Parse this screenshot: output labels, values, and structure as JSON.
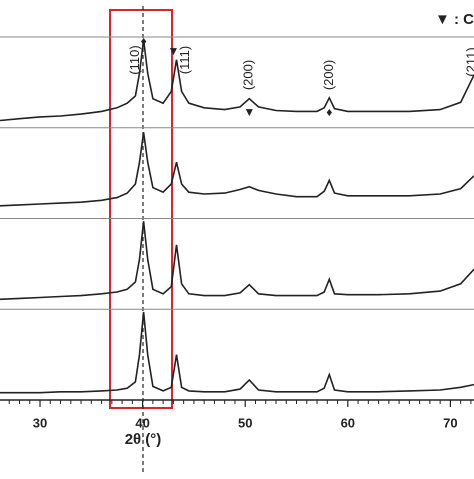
{
  "chart_data": {
    "type": "line",
    "x_label": "2θ (°)",
    "legend_text": "▼ : C",
    "xlim": [
      26.1,
      72.3
    ],
    "ylim": [
      0,
      100
    ],
    "xticks": [
      30,
      40,
      50,
      60,
      70
    ],
    "xminorticks": [
      27,
      28,
      29,
      31,
      32,
      33,
      34,
      35,
      36,
      37,
      38,
      39,
      41,
      42,
      43,
      44,
      45,
      46,
      47,
      48,
      49,
      51,
      52,
      53,
      54,
      55,
      56,
      57,
      58,
      59,
      61,
      62,
      63,
      64,
      65,
      66,
      67,
      68,
      69,
      71,
      72
    ],
    "x": [
      26.1,
      28,
      30,
      32,
      34,
      36,
      37.5,
      38.5,
      39.3,
      39.7,
      40.1,
      40.5,
      41,
      42,
      42.8,
      43.3,
      43.8,
      44.5,
      46,
      48,
      49.5,
      50.4,
      51.3,
      53,
      55,
      57,
      57.7,
      58.2,
      58.7,
      60,
      63,
      66,
      69,
      71,
      72.3
    ],
    "series": [
      {
        "color": "#222222",
        "values": [
          8,
          10,
          12,
          13,
          15,
          18,
          22,
          27,
          35,
          60,
          97,
          60,
          32,
          27,
          40,
          75,
          40,
          27,
          22,
          20,
          23,
          32,
          23,
          19,
          18,
          18,
          22,
          33,
          21,
          18,
          18,
          18,
          20,
          28,
          58
        ]
      },
      {
        "color": "#222222",
        "values": [
          14,
          15,
          16,
          17,
          18,
          20,
          23,
          28,
          38,
          62,
          95,
          62,
          34,
          29,
          38,
          62,
          38,
          29,
          27,
          28,
          32,
          35,
          31,
          27,
          24,
          24,
          30,
          42,
          28,
          25,
          25,
          25,
          27,
          33,
          47
        ]
      },
      {
        "color": "#222222",
        "values": [
          11,
          12,
          13,
          14,
          15,
          17,
          19,
          22,
          30,
          55,
          97,
          55,
          22,
          17,
          25,
          71,
          28,
          17,
          15,
          15,
          18,
          27,
          17,
          15,
          15,
          15,
          19,
          33,
          17,
          16,
          16,
          17,
          20,
          28,
          44
        ]
      },
      {
        "color": "#222222",
        "values": [
          8,
          8,
          8,
          9,
          9,
          10,
          11,
          13,
          20,
          50,
          97,
          50,
          15,
          10,
          14,
          50,
          14,
          10,
          9,
          9,
          12,
          22,
          11,
          9,
          9,
          9,
          13,
          28,
          11,
          9,
          9,
          10,
          11,
          14,
          17
        ]
      }
    ],
    "peaks": [
      {
        "label": "(110)",
        "marker": "♦",
        "x": 40.1
      },
      {
        "label": "(111)",
        "marker": "▼",
        "x": 43.0
      },
      {
        "label": "(200)",
        "marker": "▼",
        "x": 50.4
      },
      {
        "label": "(200)",
        "marker": "♦",
        "x": 58.2
      },
      {
        "label": "(211)",
        "x": 72.1
      }
    ]
  }
}
